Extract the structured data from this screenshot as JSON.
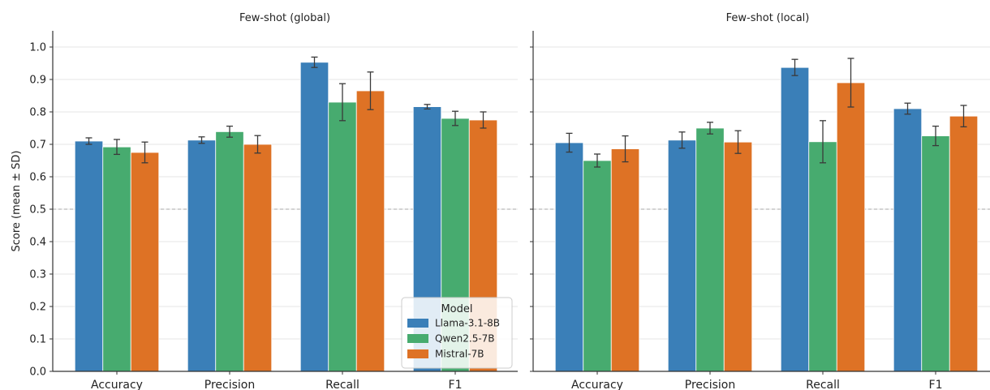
{
  "figure": {
    "ylabel": "Score (mean ± SD)",
    "legend_title": "Model"
  },
  "chart_data": [
    {
      "type": "bar",
      "title": "Few-shot (global)",
      "categories": [
        "Accuracy",
        "Precision",
        "Recall",
        "F1"
      ],
      "ylabel": "Score (mean ± SD)",
      "ylim": [
        0,
        1.05
      ],
      "yticks": [
        0.0,
        0.1,
        0.2,
        0.3,
        0.4,
        0.5,
        0.6,
        0.7,
        0.8,
        0.9,
        1.0
      ],
      "reference_line": 0.5,
      "grid": "horizontal",
      "legend_placement": "lower-right",
      "series": [
        {
          "name": "Llama-3.1-8B",
          "color": "#3a7fb8",
          "values": [
            0.71,
            0.713,
            0.953,
            0.816
          ],
          "sd": [
            0.01,
            0.01,
            0.016,
            0.007
          ]
        },
        {
          "name": "Qwen2.5-7B",
          "color": "#47ab6f",
          "values": [
            0.692,
            0.739,
            0.83,
            0.78
          ],
          "sd": [
            0.023,
            0.017,
            0.057,
            0.022
          ]
        },
        {
          "name": "Mistral-7B",
          "color": "#de7225",
          "values": [
            0.675,
            0.7,
            0.865,
            0.775
          ],
          "sd": [
            0.032,
            0.027,
            0.058,
            0.025
          ]
        }
      ]
    },
    {
      "type": "bar",
      "title": "Few-shot (local)",
      "categories": [
        "Accuracy",
        "Precision",
        "Recall",
        "F1"
      ],
      "ylim": [
        0,
        1.05
      ],
      "reference_line": 0.5,
      "grid": "horizontal",
      "series": [
        {
          "name": "Llama-3.1-8B",
          "color": "#3a7fb8",
          "values": [
            0.705,
            0.713,
            0.937,
            0.81
          ],
          "sd": [
            0.029,
            0.025,
            0.025,
            0.017
          ]
        },
        {
          "name": "Qwen2.5-7B",
          "color": "#47ab6f",
          "values": [
            0.65,
            0.75,
            0.708,
            0.726
          ],
          "sd": [
            0.02,
            0.018,
            0.065,
            0.03
          ]
        },
        {
          "name": "Mistral-7B",
          "color": "#de7225",
          "values": [
            0.686,
            0.707,
            0.89,
            0.787
          ],
          "sd": [
            0.04,
            0.035,
            0.075,
            0.033
          ]
        }
      ]
    }
  ]
}
